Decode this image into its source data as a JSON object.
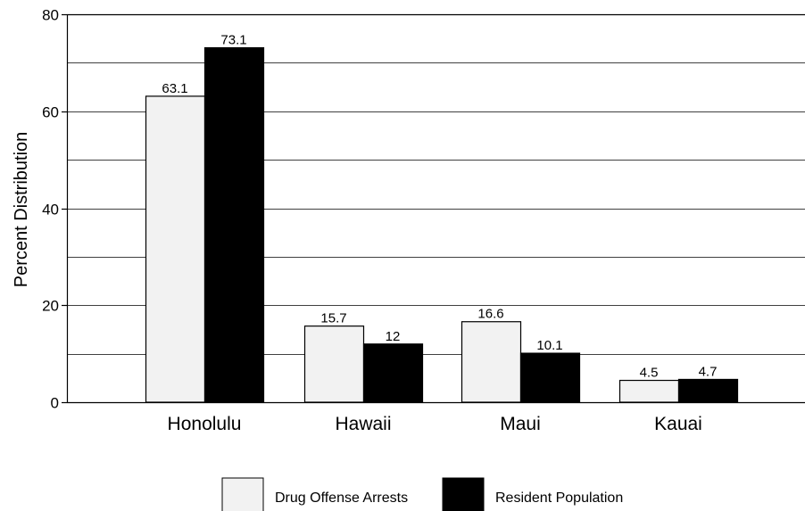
{
  "chart_data": {
    "type": "bar",
    "categories": [
      "Honolulu",
      "Hawaii",
      "Maui",
      "Kauai"
    ],
    "series": [
      {
        "name": "Drug Offense Arrests",
        "values": [
          63.1,
          15.7,
          16.6,
          4.5
        ],
        "labels": [
          "63.1",
          "15.7",
          "16.6",
          "4.5"
        ],
        "color": "#f2f2f2"
      },
      {
        "name": "Resident Population",
        "values": [
          73.1,
          12,
          10.1,
          4.7
        ],
        "labels": [
          "73.1",
          "12",
          "10.1",
          "4.7"
        ],
        "color": "#000000"
      }
    ],
    "title": "",
    "xlabel": "",
    "ylabel": "Percent Distribution",
    "ylim": [
      0,
      80
    ],
    "yticks": [
      0,
      20,
      40,
      60,
      80
    ],
    "ytick_labels": [
      "0",
      "20",
      "40",
      "60",
      "80"
    ],
    "minor_grid_step": 10,
    "grid": true,
    "legend_position": "bottom-center"
  }
}
